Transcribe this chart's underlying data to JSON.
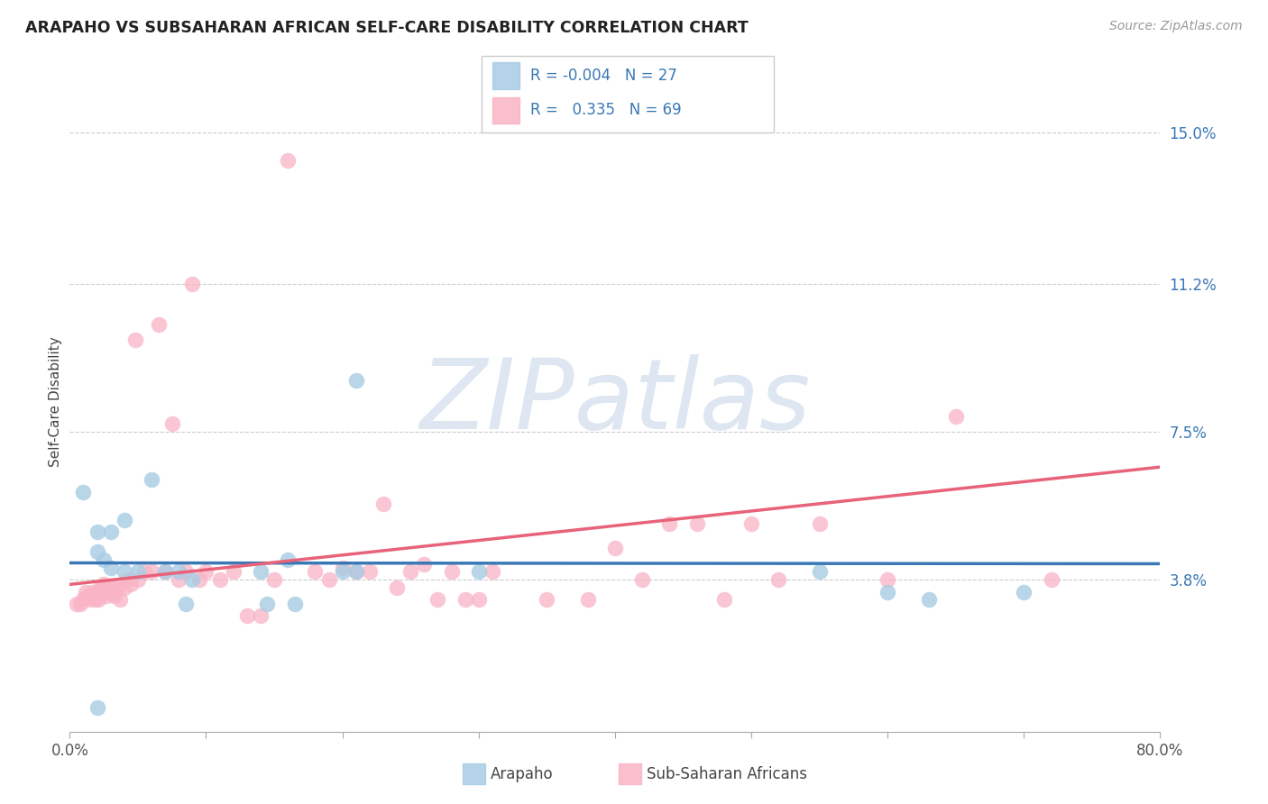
{
  "title": "ARAPAHO VS SUBSAHARAN AFRICAN SELF-CARE DISABILITY CORRELATION CHART",
  "source": "Source: ZipAtlas.com",
  "ylabel": "Self-Care Disability",
  "label_arapaho": "Arapaho",
  "label_subsaharan": "Sub-Saharan Africans",
  "xlim": [
    0.0,
    0.8
  ],
  "ylim": [
    0.0,
    0.165
  ],
  "xtick_vals": [
    0.0,
    0.1,
    0.2,
    0.3,
    0.4,
    0.5,
    0.6,
    0.7,
    0.8
  ],
  "xtick_labels": [
    "0.0%",
    "",
    "",
    "",
    "",
    "",
    "",
    "",
    "80.0%"
  ],
  "ytick_vals": [
    0.038,
    0.075,
    0.112,
    0.15
  ],
  "ytick_labels": [
    "3.8%",
    "7.5%",
    "11.2%",
    "15.0%"
  ],
  "blue_scatter_color": "#a8cce4",
  "pink_scatter_color": "#f9b4c5",
  "blue_line_color": "#3a78b5",
  "pink_line_color": "#e8637a",
  "R_blue": -0.004,
  "N_blue": 27,
  "R_pink": 0.335,
  "N_pink": 69,
  "watermark_color": "#c8d8e8",
  "blue_x": [
    0.01,
    0.02,
    0.02,
    0.025,
    0.03,
    0.03,
    0.04,
    0.04,
    0.05,
    0.06,
    0.07,
    0.08,
    0.085,
    0.09,
    0.14,
    0.145,
    0.16,
    0.165,
    0.2,
    0.21,
    0.21,
    0.3,
    0.55,
    0.6,
    0.63,
    0.7,
    0.02
  ],
  "blue_y": [
    0.06,
    0.05,
    0.045,
    0.043,
    0.05,
    0.041,
    0.053,
    0.04,
    0.04,
    0.063,
    0.04,
    0.04,
    0.032,
    0.038,
    0.04,
    0.032,
    0.043,
    0.032,
    0.04,
    0.04,
    0.088,
    0.04,
    0.04,
    0.035,
    0.033,
    0.035,
    0.006
  ],
  "pink_x": [
    0.005,
    0.008,
    0.01,
    0.012,
    0.013,
    0.015,
    0.016,
    0.018,
    0.019,
    0.02,
    0.021,
    0.022,
    0.023,
    0.025,
    0.027,
    0.028,
    0.03,
    0.032,
    0.033,
    0.035,
    0.037,
    0.04,
    0.042,
    0.045,
    0.048,
    0.05,
    0.055,
    0.06,
    0.065,
    0.07,
    0.075,
    0.08,
    0.085,
    0.09,
    0.095,
    0.1,
    0.11,
    0.12,
    0.13,
    0.14,
    0.15,
    0.16,
    0.18,
    0.19,
    0.2,
    0.21,
    0.22,
    0.23,
    0.24,
    0.25,
    0.26,
    0.27,
    0.28,
    0.29,
    0.3,
    0.31,
    0.35,
    0.38,
    0.4,
    0.42,
    0.44,
    0.46,
    0.48,
    0.5,
    0.52,
    0.55,
    0.6,
    0.65,
    0.72
  ],
  "pink_y": [
    0.032,
    0.032,
    0.033,
    0.035,
    0.034,
    0.033,
    0.035,
    0.034,
    0.033,
    0.035,
    0.033,
    0.036,
    0.035,
    0.037,
    0.034,
    0.036,
    0.035,
    0.036,
    0.034,
    0.036,
    0.033,
    0.036,
    0.038,
    0.037,
    0.098,
    0.038,
    0.04,
    0.04,
    0.102,
    0.04,
    0.077,
    0.038,
    0.04,
    0.112,
    0.038,
    0.04,
    0.038,
    0.04,
    0.029,
    0.029,
    0.038,
    0.143,
    0.04,
    0.038,
    0.041,
    0.04,
    0.04,
    0.057,
    0.036,
    0.04,
    0.042,
    0.033,
    0.04,
    0.033,
    0.033,
    0.04,
    0.033,
    0.033,
    0.046,
    0.038,
    0.052,
    0.052,
    0.033,
    0.052,
    0.038,
    0.052,
    0.038,
    0.079,
    0.038
  ]
}
